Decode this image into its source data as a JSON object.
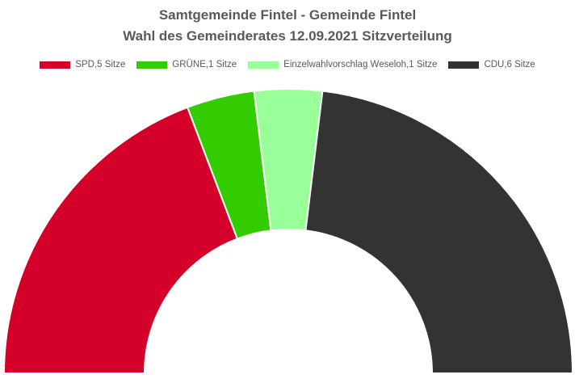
{
  "chart_data": {
    "type": "pie",
    "variant": "half-donut (parliament)",
    "title": "Samtgemeinde Fintel - Gemeinde Fintel",
    "subtitle": "Wahl des Gemeinderates 12.09.2021 Sitzverteilung",
    "legend_position": "top",
    "series": [
      {
        "name": "SPD,5 Sitze",
        "value": 5,
        "color": "#d50029"
      },
      {
        "name": "GRÜNE,1 Sitze",
        "value": 1,
        "color": "#33cc00"
      },
      {
        "name": "Einzelwahlvorschlag Weseloh,1 Sitze",
        "value": 1,
        "color": "#99ff99"
      },
      {
        "name": "CDU,6 Sitze",
        "value": 6,
        "color": "#333333"
      }
    ]
  }
}
